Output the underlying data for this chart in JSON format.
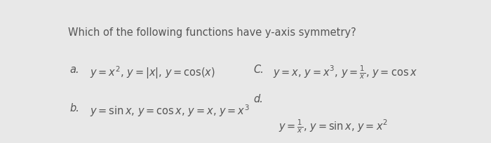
{
  "title": "Which of the following functions have y-axis symmetry?",
  "bg_color": "#e8e8e8",
  "title_fontsize": 10.5,
  "option_fontsize": 10.5,
  "label_a": "a.",
  "label_b": "b.",
  "label_c": "C.",
  "label_d": "d.",
  "text_a": "$y = x^2$, $y = |x|$, $y = \\cos(x)$",
  "text_b": "$y = \\sin x$, $y = \\cos x$, $y = x$, $y = x^3$",
  "text_c": "$y = x$, $y = x^3$, $y = \\frac{1}{x}$, $y = \\cos x$",
  "text_d_label": "d.",
  "text_d_body": "$y = \\frac{1}{x}$, $y = \\sin x$, $y = x^2$",
  "text_color": "#555555",
  "label_color": "#555555"
}
